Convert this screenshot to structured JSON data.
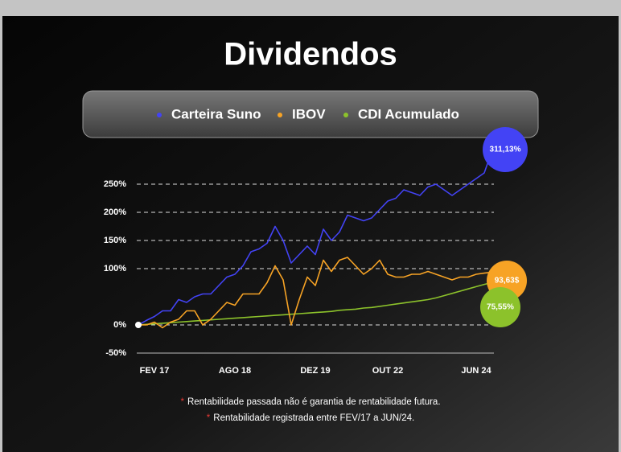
{
  "chart_data": {
    "type": "line",
    "title": "Dividendos",
    "categories": [
      null,
      null,
      "FEV 17",
      null,
      null,
      null,
      null,
      null,
      null,
      null,
      null,
      null,
      "AGO 18",
      null,
      null,
      null,
      null,
      null,
      null,
      null,
      null,
      null,
      "DEZ 19",
      null,
      null,
      null,
      null,
      null,
      null,
      null,
      null,
      "OUT 22",
      null,
      null,
      null,
      null,
      null,
      null,
      null,
      null,
      null,
      null,
      "JUN 24",
      null,
      null
    ],
    "series": [
      {
        "name": "Carteira Suno",
        "color": "#4343f5",
        "values": [
          0,
          8,
          15,
          25,
          25,
          45,
          40,
          50,
          55,
          55,
          70,
          85,
          90,
          105,
          130,
          135,
          145,
          175,
          150,
          110,
          125,
          140,
          125,
          170,
          150,
          165,
          195,
          190,
          185,
          190,
          205,
          220,
          225,
          240,
          235,
          230,
          245,
          250,
          240,
          230,
          240,
          250,
          260,
          270,
          311.13
        ],
        "value_labels": [
          null,
          null,
          null,
          null,
          null,
          null,
          null,
          null,
          null,
          null,
          null,
          null,
          null,
          null,
          null,
          null,
          null,
          null,
          null,
          null,
          null,
          null,
          null,
          null,
          null,
          null,
          null,
          null,
          null,
          null,
          null,
          null,
          null,
          null,
          null,
          null,
          null,
          null,
          null,
          null,
          null,
          null,
          null,
          null,
          "311,13%"
        ]
      },
      {
        "name": "IBOV",
        "color": "#f7a325",
        "values": [
          0,
          0,
          5,
          -5,
          5,
          10,
          25,
          25,
          0,
          10,
          25,
          40,
          35,
          55,
          55,
          55,
          75,
          105,
          80,
          0,
          45,
          85,
          70,
          115,
          95,
          115,
          120,
          105,
          90,
          100,
          115,
          90,
          85,
          85,
          90,
          90,
          95,
          90,
          85,
          80,
          85,
          85,
          90,
          92,
          93.63
        ],
        "value_labels": [
          null,
          null,
          null,
          null,
          null,
          null,
          null,
          null,
          null,
          null,
          null,
          null,
          null,
          null,
          null,
          null,
          null,
          null,
          null,
          null,
          null,
          null,
          null,
          null,
          null,
          null,
          null,
          null,
          null,
          null,
          null,
          null,
          null,
          null,
          null,
          null,
          null,
          null,
          null,
          null,
          null,
          null,
          null,
          null,
          "93,63$"
        ]
      },
      {
        "name": "CDI Acumulado",
        "color": "#8cc22b",
        "values": [
          0,
          1,
          2,
          3,
          4,
          5,
          6,
          7,
          8,
          9,
          10,
          11,
          12,
          13,
          14,
          15,
          16,
          17,
          18,
          19,
          20,
          21,
          22,
          23,
          24,
          26,
          27,
          28,
          30,
          31,
          33,
          35,
          37,
          39,
          41,
          43,
          45,
          48,
          52,
          56,
          60,
          64,
          68,
          72,
          75.55
        ],
        "value_labels": [
          null,
          null,
          null,
          null,
          null,
          null,
          null,
          null,
          null,
          null,
          null,
          null,
          null,
          null,
          null,
          null,
          null,
          null,
          null,
          null,
          null,
          null,
          null,
          null,
          null,
          null,
          null,
          null,
          null,
          null,
          null,
          null,
          null,
          null,
          null,
          null,
          null,
          null,
          null,
          null,
          null,
          null,
          null,
          null,
          "75,55%"
        ]
      }
    ],
    "ylim": [
      -50,
      320
    ],
    "yticks": [
      {
        "value": -50,
        "label": "-50%"
      },
      {
        "value": 0,
        "label": "0%"
      },
      {
        "value": 100,
        "label": "100%"
      },
      {
        "value": 150,
        "label": "150%"
      },
      {
        "value": 200,
        "label": "200%"
      },
      {
        "value": 250,
        "label": "250%"
      }
    ],
    "grid": true,
    "notes": [
      {
        "marker": "*",
        "text": "Rentabilidade passada não é garantia de rentabilidade futura."
      },
      {
        "marker": "*",
        "text": "Rentabilidade registrada entre FEV/17 a JUN/24."
      }
    ]
  }
}
